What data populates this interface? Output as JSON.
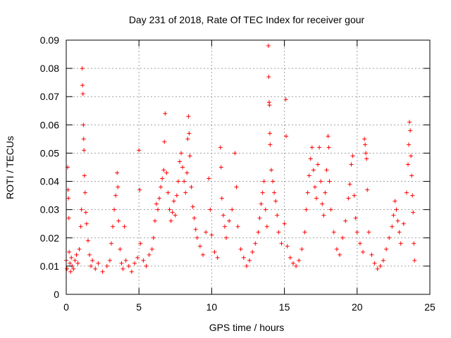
{
  "chart_data": {
    "type": "scatter",
    "title": "Day 231 of 2018, Rate Of TEC Index for receiver gour",
    "xlabel": "GPS time / hours",
    "ylabel": "ROTI / TECUs",
    "xlim": [
      0,
      25
    ],
    "ylim": [
      0,
      0.09
    ],
    "xticks": [
      0,
      5,
      10,
      15,
      20,
      25
    ],
    "xtick_labels": [
      "0",
      "5",
      "10",
      "15",
      "20",
      "25"
    ],
    "yticks": [
      0,
      0.01,
      0.02,
      0.03,
      0.04,
      0.05,
      0.06,
      0.07,
      0.08,
      0.09
    ],
    "ytick_labels": [
      "0",
      "0.01",
      "0.02",
      "0.03",
      "0.04",
      "0.05",
      "0.06",
      "0.07",
      "0.08",
      "0.09"
    ],
    "grid": true,
    "marker": "plus",
    "color": "#ff0000",
    "series": [
      {
        "name": "ROTI",
        "points": [
          [
            0.0,
            0.012
          ],
          [
            0.05,
            0.009
          ],
          [
            0.1,
            0.045
          ],
          [
            0.12,
            0.037
          ],
          [
            0.15,
            0.034
          ],
          [
            0.18,
            0.027
          ],
          [
            0.2,
            0.015
          ],
          [
            0.25,
            0.011
          ],
          [
            0.3,
            0.008
          ],
          [
            0.35,
            0.013
          ],
          [
            0.4,
            0.01
          ],
          [
            0.5,
            0.009
          ],
          [
            0.6,
            0.012
          ],
          [
            0.7,
            0.014
          ],
          [
            0.8,
            0.011
          ],
          [
            0.9,
            0.016
          ],
          [
            1.0,
            0.024
          ],
          [
            1.05,
            0.03
          ],
          [
            1.1,
            0.08
          ],
          [
            1.12,
            0.074
          ],
          [
            1.15,
            0.071
          ],
          [
            1.18,
            0.06
          ],
          [
            1.2,
            0.055
          ],
          [
            1.22,
            0.051
          ],
          [
            1.25,
            0.042
          ],
          [
            1.3,
            0.036
          ],
          [
            1.35,
            0.029
          ],
          [
            1.4,
            0.025
          ],
          [
            1.5,
            0.019
          ],
          [
            1.6,
            0.014
          ],
          [
            1.7,
            0.01
          ],
          [
            1.8,
            0.012
          ],
          [
            2.0,
            0.009
          ],
          [
            2.2,
            0.011
          ],
          [
            2.5,
            0.008
          ],
          [
            2.8,
            0.01
          ],
          [
            3.0,
            0.012
          ],
          [
            3.1,
            0.018
          ],
          [
            3.2,
            0.024
          ],
          [
            3.3,
            0.03
          ],
          [
            3.4,
            0.035
          ],
          [
            3.5,
            0.043
          ],
          [
            3.55,
            0.038
          ],
          [
            3.6,
            0.026
          ],
          [
            3.7,
            0.016
          ],
          [
            3.8,
            0.011
          ],
          [
            3.9,
            0.009
          ],
          [
            4.0,
            0.024
          ],
          [
            4.1,
            0.012
          ],
          [
            4.3,
            0.01
          ],
          [
            4.5,
            0.008
          ],
          [
            4.7,
            0.011
          ],
          [
            4.9,
            0.013
          ],
          [
            5.0,
            0.051
          ],
          [
            5.05,
            0.037
          ],
          [
            5.1,
            0.018
          ],
          [
            5.3,
            0.012
          ],
          [
            5.5,
            0.01
          ],
          [
            5.7,
            0.014
          ],
          [
            5.9,
            0.016
          ],
          [
            6.0,
            0.02
          ],
          [
            6.1,
            0.026
          ],
          [
            6.2,
            0.032
          ],
          [
            6.3,
            0.03
          ],
          [
            6.4,
            0.034
          ],
          [
            6.5,
            0.038
          ],
          [
            6.6,
            0.041
          ],
          [
            6.7,
            0.044
          ],
          [
            6.75,
            0.054
          ],
          [
            6.8,
            0.064
          ],
          [
            6.9,
            0.043
          ],
          [
            7.0,
            0.036
          ],
          [
            7.1,
            0.03
          ],
          [
            7.2,
            0.026
          ],
          [
            7.3,
            0.029
          ],
          [
            7.4,
            0.033
          ],
          [
            7.5,
            0.028
          ],
          [
            7.6,
            0.035
          ],
          [
            7.7,
            0.04
          ],
          [
            7.8,
            0.047
          ],
          [
            7.9,
            0.05
          ],
          [
            8.0,
            0.045
          ],
          [
            8.1,
            0.04
          ],
          [
            8.2,
            0.036
          ],
          [
            8.3,
            0.043
          ],
          [
            8.35,
            0.055
          ],
          [
            8.4,
            0.063
          ],
          [
            8.45,
            0.057
          ],
          [
            8.5,
            0.049
          ],
          [
            8.6,
            0.038
          ],
          [
            8.7,
            0.031
          ],
          [
            8.8,
            0.027
          ],
          [
            8.9,
            0.023
          ],
          [
            9.0,
            0.02
          ],
          [
            9.2,
            0.017
          ],
          [
            9.4,
            0.014
          ],
          [
            9.6,
            0.022
          ],
          [
            9.8,
            0.041
          ],
          [
            9.9,
            0.03
          ],
          [
            10.0,
            0.021
          ],
          [
            10.2,
            0.015
          ],
          [
            10.4,
            0.013
          ],
          [
            10.6,
            0.052
          ],
          [
            10.65,
            0.045
          ],
          [
            10.7,
            0.034
          ],
          [
            10.8,
            0.028
          ],
          [
            10.9,
            0.024
          ],
          [
            11.0,
            0.02
          ],
          [
            11.2,
            0.026
          ],
          [
            11.4,
            0.03
          ],
          [
            11.6,
            0.05
          ],
          [
            11.7,
            0.038
          ],
          [
            11.8,
            0.024
          ],
          [
            12.0,
            0.016
          ],
          [
            12.2,
            0.013
          ],
          [
            12.4,
            0.01
          ],
          [
            12.6,
            0.012
          ],
          [
            12.8,
            0.015
          ],
          [
            13.0,
            0.018
          ],
          [
            13.2,
            0.022
          ],
          [
            13.3,
            0.027
          ],
          [
            13.4,
            0.032
          ],
          [
            13.5,
            0.036
          ],
          [
            13.6,
            0.04
          ],
          [
            13.7,
            0.03
          ],
          [
            13.8,
            0.024
          ],
          [
            13.9,
            0.088
          ],
          [
            13.92,
            0.077
          ],
          [
            13.95,
            0.068
          ],
          [
            13.97,
            0.067
          ],
          [
            14.0,
            0.057
          ],
          [
            14.02,
            0.053
          ],
          [
            14.1,
            0.044
          ],
          [
            14.2,
            0.04
          ],
          [
            14.3,
            0.036
          ],
          [
            14.4,
            0.033
          ],
          [
            14.5,
            0.028
          ],
          [
            14.6,
            0.022
          ],
          [
            14.8,
            0.018
          ],
          [
            15.0,
            0.025
          ],
          [
            15.1,
            0.069
          ],
          [
            15.12,
            0.056
          ],
          [
            15.2,
            0.017
          ],
          [
            15.4,
            0.013
          ],
          [
            15.6,
            0.011
          ],
          [
            15.8,
            0.01
          ],
          [
            16.0,
            0.012
          ],
          [
            16.2,
            0.016
          ],
          [
            16.4,
            0.022
          ],
          [
            16.5,
            0.03
          ],
          [
            16.6,
            0.036
          ],
          [
            16.7,
            0.042
          ],
          [
            16.8,
            0.048
          ],
          [
            16.9,
            0.052
          ],
          [
            17.0,
            0.044
          ],
          [
            17.1,
            0.038
          ],
          [
            17.2,
            0.034
          ],
          [
            17.3,
            0.046
          ],
          [
            17.4,
            0.052
          ],
          [
            17.5,
            0.04
          ],
          [
            17.6,
            0.032
          ],
          [
            17.7,
            0.028
          ],
          [
            17.8,
            0.036
          ],
          [
            17.9,
            0.044
          ],
          [
            18.0,
            0.056
          ],
          [
            18.05,
            0.052
          ],
          [
            18.1,
            0.04
          ],
          [
            18.2,
            0.03
          ],
          [
            18.4,
            0.022
          ],
          [
            18.6,
            0.016
          ],
          [
            18.8,
            0.014
          ],
          [
            19.0,
            0.02
          ],
          [
            19.2,
            0.026
          ],
          [
            19.4,
            0.034
          ],
          [
            19.5,
            0.039
          ],
          [
            19.6,
            0.046
          ],
          [
            19.7,
            0.049
          ],
          [
            19.8,
            0.035
          ],
          [
            19.9,
            0.027
          ],
          [
            20.0,
            0.022
          ],
          [
            20.2,
            0.018
          ],
          [
            20.4,
            0.015
          ],
          [
            20.5,
            0.055
          ],
          [
            20.55,
            0.053
          ],
          [
            20.6,
            0.05
          ],
          [
            20.65,
            0.048
          ],
          [
            20.7,
            0.037
          ],
          [
            20.8,
            0.022
          ],
          [
            21.0,
            0.014
          ],
          [
            21.2,
            0.011
          ],
          [
            21.4,
            0.009
          ],
          [
            21.6,
            0.01
          ],
          [
            21.8,
            0.012
          ],
          [
            22.0,
            0.016
          ],
          [
            22.2,
            0.02
          ],
          [
            22.4,
            0.024
          ],
          [
            22.5,
            0.028
          ],
          [
            22.6,
            0.033
          ],
          [
            22.7,
            0.03
          ],
          [
            22.8,
            0.026
          ],
          [
            22.9,
            0.022
          ],
          [
            23.0,
            0.018
          ],
          [
            23.2,
            0.025
          ],
          [
            23.4,
            0.036
          ],
          [
            23.5,
            0.046
          ],
          [
            23.55,
            0.053
          ],
          [
            23.6,
            0.061
          ],
          [
            23.65,
            0.058
          ],
          [
            23.7,
            0.049
          ],
          [
            23.75,
            0.042
          ],
          [
            23.8,
            0.035
          ],
          [
            23.85,
            0.029
          ],
          [
            23.9,
            0.018
          ],
          [
            23.95,
            0.012
          ]
        ]
      }
    ]
  }
}
